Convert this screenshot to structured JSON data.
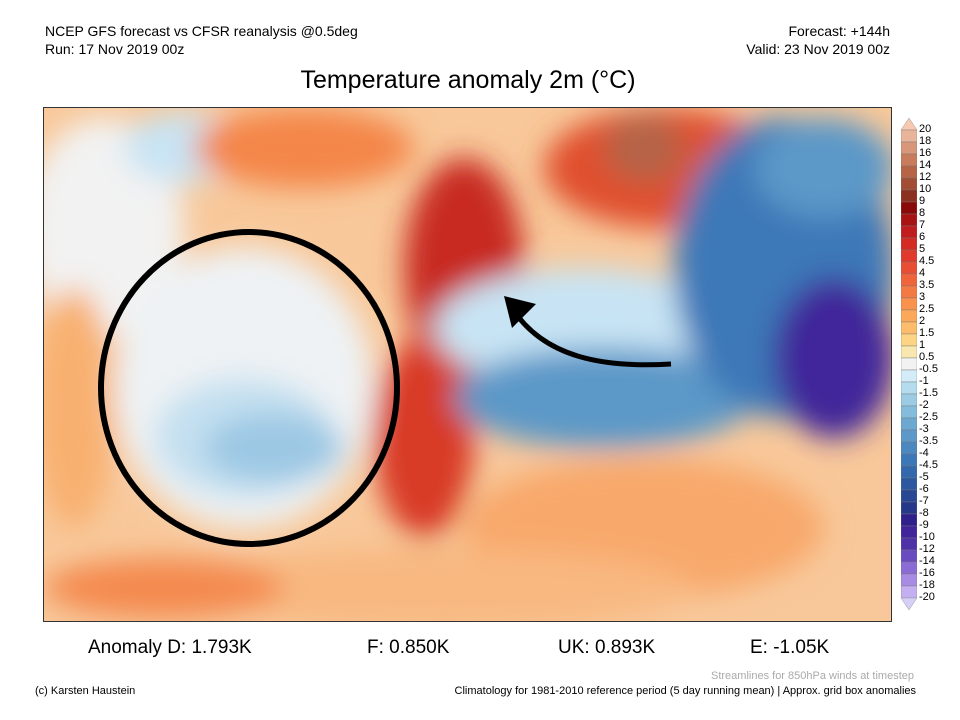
{
  "header": {
    "line1": "NCEP GFS forecast vs CFSR reanalysis @0.5deg",
    "line2": "Run: 17 Nov 2019 00z",
    "forecast": "Forecast: +144h",
    "valid": "Valid: 23 Nov 2019 00z"
  },
  "title": "Temperature anomaly 2m (°C)",
  "stats": {
    "d": "Anomaly D: 1.793K",
    "f": "F: 0.850K",
    "uk": "UK: 0.893K",
    "e": "E: -1.05K"
  },
  "footer": {
    "credit": "(c) Karsten Haustein",
    "streamlines": "Streamlines for 850hPa winds at timestep",
    "climatology": "Climatology for 1981-2010 reference period (5 day running mean) | Approx. grid box anomalies"
  },
  "colorbar": {
    "labels": [
      "20",
      "18",
      "16",
      "14",
      "12",
      "10",
      "9",
      "8",
      "7",
      "6",
      "5",
      "4.5",
      "4",
      "3.5",
      "3",
      "2.5",
      "2",
      "1.5",
      "1",
      "0.5",
      "-0.5",
      "-1",
      "-1.5",
      "-2",
      "-2.5",
      "-3",
      "-3.5",
      "-4",
      "-4.5",
      "-5",
      "-6",
      "-7",
      "-8",
      "-9",
      "-10",
      "-12",
      "-14",
      "-16",
      "-18",
      "-20"
    ],
    "colors": [
      "#e8b49a",
      "#d9977a",
      "#c87c5c",
      "#b56446",
      "#a24e34",
      "#8c3020",
      "#8a0a0a",
      "#a81414",
      "#c01e1e",
      "#d42a24",
      "#e03a2c",
      "#e84e34",
      "#f0643c",
      "#f47a44",
      "#f8924c",
      "#fca85a",
      "#fcbc6c",
      "#fcd484",
      "#f8e8b0",
      "#f2f2f2",
      "#d4ecf8",
      "#b4dcee",
      "#9ccce4",
      "#84bcdc",
      "#6ca8d0",
      "#5c98c8",
      "#4c88c0",
      "#3c78b8",
      "#3468ac",
      "#2c58a0",
      "#284894",
      "#283888",
      "#30208a",
      "#40269a",
      "#5032a8",
      "#6a4cc0",
      "#8a6cd4",
      "#a88ce4",
      "#c4b0f0"
    ],
    "top_color": "#f8c8b0",
    "bottom_color": "#d4d0f8"
  }
}
